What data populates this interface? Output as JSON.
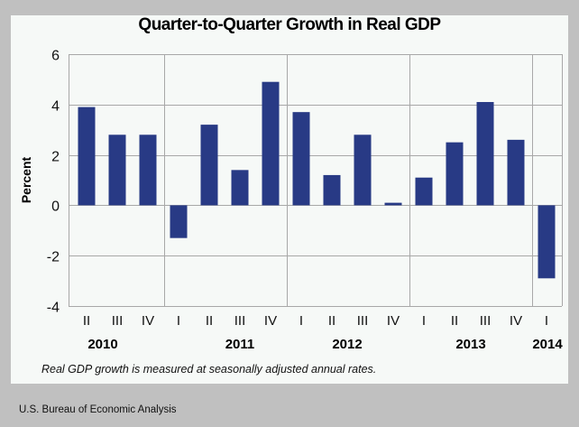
{
  "chart_data": {
    "type": "bar",
    "title": "Quarter-to-Quarter Growth in Real GDP",
    "xlabel": "",
    "ylabel": "Percent",
    "ylim": [
      -4,
      6
    ],
    "yticks": [
      6,
      4,
      2,
      0,
      -2,
      -4
    ],
    "ytick_labels": [
      "6",
      "4",
      "2",
      "0",
      "-2",
      "-4"
    ],
    "grid": true,
    "categories": [
      "II",
      "III",
      "IV",
      "I",
      "II",
      "III",
      "IV",
      "I",
      "II",
      "III",
      "IV",
      "I",
      "II",
      "III",
      "IV",
      "I"
    ],
    "groups": [
      {
        "label": "2010",
        "quarters": [
          "II",
          "III",
          "IV"
        ]
      },
      {
        "label": "2011",
        "quarters": [
          "I",
          "II",
          "III",
          "IV"
        ]
      },
      {
        "label": "2012",
        "quarters": [
          "I",
          "II",
          "III",
          "IV"
        ]
      },
      {
        "label": "2013",
        "quarters": [
          "I",
          "II",
          "III",
          "IV"
        ]
      },
      {
        "label": "2014",
        "quarters": [
          "I"
        ]
      }
    ],
    "series": [
      {
        "name": "Real GDP growth",
        "color": "#283a85",
        "values": [
          3.9,
          2.8,
          2.8,
          -1.3,
          3.2,
          1.4,
          4.9,
          3.7,
          1.2,
          2.8,
          0.1,
          1.1,
          2.5,
          4.1,
          2.6,
          -2.9
        ]
      }
    ],
    "note": "Real GDP growth is measured at seasonally adjusted annual rates.",
    "source": "U.S. Bureau of Economic Analysis"
  },
  "colors": {
    "bar": "#283a85",
    "grid": "#a8a8a8",
    "panel": "#f6f9f7",
    "background": "#c0c0c0"
  }
}
